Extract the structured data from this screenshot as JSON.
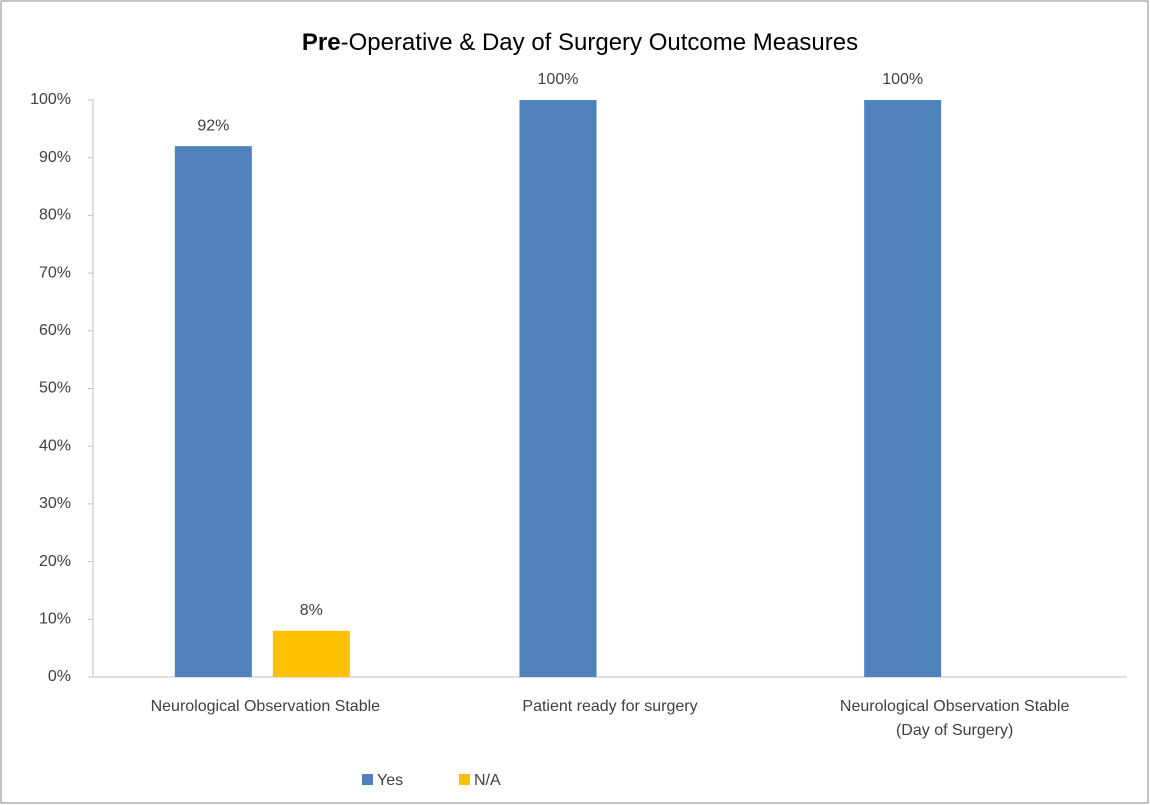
{
  "chart_data": {
    "type": "bar",
    "title": {
      "bold": "Pre",
      "text": "-Operative & Day of Surgery Outcome Measures"
    },
    "categories": [
      [
        "Neurological Observation Stable"
      ],
      [
        "Patient ready for surgery"
      ],
      [
        "Neurological Observation Stable",
        "(Day of Surgery)"
      ]
    ],
    "series": [
      {
        "name": "Yes",
        "color": "#4f81bd",
        "values": [
          92,
          100,
          100
        ],
        "value_labels": [
          "92%",
          "100%",
          "100%"
        ]
      },
      {
        "name": "N/A",
        "color": "#ffc000",
        "values": [
          8,
          null,
          null
        ],
        "value_labels": [
          "8%",
          null,
          null
        ]
      }
    ],
    "ylim": [
      0,
      100
    ],
    "yticks": [
      {
        "value": 0,
        "label": "0%"
      },
      {
        "value": 10,
        "label": "10%"
      },
      {
        "value": 20,
        "label": "20%"
      },
      {
        "value": 30,
        "label": "30%"
      },
      {
        "value": 40,
        "label": "40%"
      },
      {
        "value": 50,
        "label": "50%"
      },
      {
        "value": 60,
        "label": "60%"
      },
      {
        "value": 70,
        "label": "70%"
      },
      {
        "value": 80,
        "label": "80%"
      },
      {
        "value": 90,
        "label": "90%"
      },
      {
        "value": 100,
        "label": "100%"
      }
    ],
    "grid": false,
    "legend": "bottom"
  }
}
